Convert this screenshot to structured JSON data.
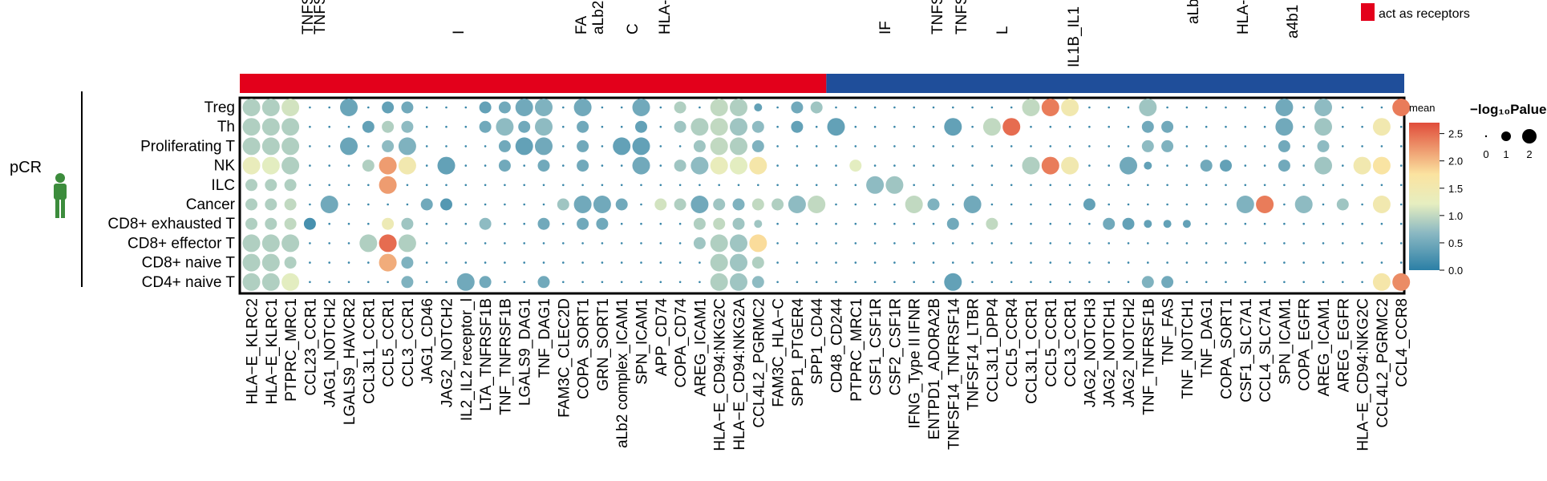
{
  "chart_data": {
    "type": "scatter",
    "group_label": "pCR",
    "rows": [
      "Treg",
      "Th",
      "Proliferating T",
      "NK",
      "ILC",
      "Cancer",
      "CD8+ exhausted T",
      "CD8+ effector T",
      "CD8+ naive T",
      "CD4+ naive T"
    ],
    "columns": [
      "HLA−E_KLRC2",
      "HLA−E_KLRC1",
      "PTPRC_MRC1",
      "CCL23_CCR1",
      "JAG1_NOTCH2",
      "LGALS9_HAVCR2",
      "CCL3L1_CCR1",
      "CCL5_CCR1",
      "CCL3_CCR1",
      "JAG1_CD46",
      "JAG2_NOTCH2",
      "IL2_IL2 receptor_l",
      "LTA_TNFRSF1B",
      "TNF_TNFRSF1B",
      "LGALS9_DAG1",
      "TNF_DAG1",
      "FAM3C_CLEC2D",
      "COPA_SORT1",
      "GRN_SORT1",
      "aLb2 complex_ICAM1",
      "SPN_ICAM1",
      "APP_CD74",
      "COPA_CD74",
      "AREG_ICAM1",
      "HLA−E_CD94:NKG2C",
      "HLA−E_CD94:NKG2A",
      "CCL4L2_PGRMC2",
      "FAM3C_HLA−C",
      "SPP1_PTGER4",
      "SPP1_CD44",
      "CD48_CD244",
      "PTPRC_MRC1",
      "CSF1_CSF1R",
      "CSF2_CSF1R",
      "IFNG_Type II IFNR",
      "ENTPD1_ADORA2B",
      "TNFSF14_TNFRSF14",
      "TNFSF14_LTBR",
      "CCL3L1_DPP4",
      "CCL5_CCR4",
      "CCL3L1_CCR1",
      "CCL5_CCR1",
      "CCL3_CCR1",
      "JAG2_NOTCH3",
      "JAG2_NOTCH1",
      "JAG2_NOTCH2",
      "TNF_TNFRSF1B",
      "TNF_FAS",
      "TNF_NOTCH1",
      "TNF_DAG1",
      "COPA_SORT1",
      "CSF1_SLC7A1",
      "CCL4_SLC7A1",
      "SPN_ICAM1",
      "COPA_EGFR",
      "AREG_ICAM1",
      "AREG_EGFR",
      "HLA−E_CD94:NKG2C",
      "CCL4L2_PGRMC2",
      "CCL4_CCR8"
    ],
    "top_labels": [
      "TNFS",
      "TNFS",
      "I",
      "FA",
      "aLb2",
      "C",
      "HLA-",
      "IF",
      "TNFS",
      "TNFSI",
      "L",
      "IL1B_IL1",
      "aLb",
      "HLA-",
      "a4b1"
    ],
    "groups": [
      {
        "start": 0,
        "end": 29,
        "color": "#e3001b"
      },
      {
        "start": 30,
        "end": 59,
        "color": "#1f4e9a"
      }
    ],
    "legend_receptor": {
      "label": "act as receptors",
      "color": "#e3001b"
    },
    "color_legend": {
      "title": "mean",
      "ticks": [
        "2.5",
        "2.0",
        "1.5",
        "1.0",
        "0.5",
        "0.0"
      ],
      "min": 0,
      "max": 2.7
    },
    "size_legend": {
      "title": "−log₁₀Palue",
      "ticks": [
        "0",
        "1",
        "2"
      ]
    },
    "points": [
      [
        0,
        0,
        3,
        0.9
      ],
      [
        0,
        1,
        3,
        0.9
      ],
      [
        0,
        2,
        3,
        1.1
      ],
      [
        0,
        5,
        3,
        0.45
      ],
      [
        0,
        7,
        2,
        0.4
      ],
      [
        0,
        8,
        2,
        0.5
      ],
      [
        0,
        12,
        2,
        0.4
      ],
      [
        0,
        13,
        2,
        0.5
      ],
      [
        0,
        14,
        3,
        0.5
      ],
      [
        0,
        15,
        3,
        0.6
      ],
      [
        0,
        17,
        3,
        0.5
      ],
      [
        0,
        20,
        3,
        0.5
      ],
      [
        0,
        22,
        2,
        0.9
      ],
      [
        0,
        24,
        3,
        1.0
      ],
      [
        0,
        25,
        3,
        0.9
      ],
      [
        0,
        26,
        1,
        0.4
      ],
      [
        0,
        28,
        2,
        0.5
      ],
      [
        0,
        29,
        2,
        0.8
      ],
      [
        0,
        40,
        3,
        1.0
      ],
      [
        0,
        41,
        3,
        2.4
      ],
      [
        0,
        42,
        3,
        1.5
      ],
      [
        0,
        46,
        3,
        0.8
      ],
      [
        0,
        53,
        3,
        0.5
      ],
      [
        0,
        55,
        3,
        0.7
      ],
      [
        0,
        59,
        3,
        2.4
      ],
      [
        1,
        0,
        3,
        0.9
      ],
      [
        1,
        1,
        3,
        0.9
      ],
      [
        1,
        2,
        3,
        0.9
      ],
      [
        1,
        6,
        2,
        0.4
      ],
      [
        1,
        7,
        2,
        0.9
      ],
      [
        1,
        8,
        2,
        0.7
      ],
      [
        1,
        12,
        2,
        0.5
      ],
      [
        1,
        13,
        3,
        0.7
      ],
      [
        1,
        14,
        2,
        0.5
      ],
      [
        1,
        15,
        3,
        0.7
      ],
      [
        1,
        17,
        2,
        0.5
      ],
      [
        1,
        20,
        2,
        0.4
      ],
      [
        1,
        22,
        2,
        0.8
      ],
      [
        1,
        23,
        3,
        0.9
      ],
      [
        1,
        24,
        3,
        1.0
      ],
      [
        1,
        25,
        3,
        0.8
      ],
      [
        1,
        26,
        2,
        0.7
      ],
      [
        1,
        28,
        2,
        0.4
      ],
      [
        1,
        30,
        3,
        0.4
      ],
      [
        1,
        36,
        3,
        0.4
      ],
      [
        1,
        38,
        3,
        1.0
      ],
      [
        1,
        39,
        3,
        2.5
      ],
      [
        1,
        46,
        2,
        0.5
      ],
      [
        1,
        47,
        2,
        0.5
      ],
      [
        1,
        53,
        3,
        0.5
      ],
      [
        1,
        55,
        3,
        0.8
      ],
      [
        1,
        58,
        3,
        1.5
      ],
      [
        2,
        0,
        3,
        0.9
      ],
      [
        2,
        1,
        3,
        0.9
      ],
      [
        2,
        2,
        3,
        0.9
      ],
      [
        2,
        5,
        3,
        0.45
      ],
      [
        2,
        7,
        2,
        0.7
      ],
      [
        2,
        8,
        3,
        0.6
      ],
      [
        2,
        13,
        2,
        0.5
      ],
      [
        2,
        14,
        3,
        0.4
      ],
      [
        2,
        15,
        3,
        0.5
      ],
      [
        2,
        17,
        2,
        0.5
      ],
      [
        2,
        19,
        3,
        0.4
      ],
      [
        2,
        20,
        3,
        0.4
      ],
      [
        2,
        23,
        2,
        0.8
      ],
      [
        2,
        24,
        3,
        1.0
      ],
      [
        2,
        25,
        3,
        0.9
      ],
      [
        2,
        26,
        2,
        0.6
      ],
      [
        2,
        46,
        2,
        0.7
      ],
      [
        2,
        47,
        2,
        0.6
      ],
      [
        2,
        53,
        2,
        0.5
      ],
      [
        2,
        55,
        2,
        0.7
      ],
      [
        3,
        0,
        3,
        1.3
      ],
      [
        3,
        1,
        3,
        1.2
      ],
      [
        3,
        2,
        3,
        0.9
      ],
      [
        3,
        6,
        2,
        0.9
      ],
      [
        3,
        7,
        3,
        2.2
      ],
      [
        3,
        8,
        3,
        1.5
      ],
      [
        3,
        10,
        3,
        0.4
      ],
      [
        3,
        13,
        2,
        0.5
      ],
      [
        3,
        15,
        2,
        0.5
      ],
      [
        3,
        17,
        2,
        0.5
      ],
      [
        3,
        20,
        3,
        0.5
      ],
      [
        3,
        22,
        2,
        0.8
      ],
      [
        3,
        23,
        3,
        0.7
      ],
      [
        3,
        24,
        3,
        1.3
      ],
      [
        3,
        25,
        3,
        1.2
      ],
      [
        3,
        26,
        3,
        1.6
      ],
      [
        3,
        31,
        2,
        1.2
      ],
      [
        3,
        40,
        3,
        0.9
      ],
      [
        3,
        41,
        3,
        2.4
      ],
      [
        3,
        42,
        3,
        1.5
      ],
      [
        3,
        45,
        3,
        0.5
      ],
      [
        3,
        46,
        1,
        0.4
      ],
      [
        3,
        49,
        2,
        0.5
      ],
      [
        3,
        50,
        2,
        0.4
      ],
      [
        3,
        53,
        2,
        0.5
      ],
      [
        3,
        55,
        3,
        0.8
      ],
      [
        3,
        57,
        3,
        1.5
      ],
      [
        3,
        58,
        3,
        1.7
      ],
      [
        4,
        0,
        2,
        0.9
      ],
      [
        4,
        1,
        2,
        0.9
      ],
      [
        4,
        2,
        2,
        0.9
      ],
      [
        4,
        7,
        3,
        2.2
      ],
      [
        4,
        32,
        3,
        0.7
      ],
      [
        4,
        33,
        3,
        0.8
      ],
      [
        5,
        0,
        2,
        0.9
      ],
      [
        5,
        1,
        2,
        0.9
      ],
      [
        5,
        2,
        2,
        1.0
      ],
      [
        5,
        4,
        3,
        0.5
      ],
      [
        5,
        9,
        2,
        0.5
      ],
      [
        5,
        10,
        2,
        0.3
      ],
      [
        5,
        16,
        2,
        0.8
      ],
      [
        5,
        17,
        3,
        0.5
      ],
      [
        5,
        18,
        3,
        0.5
      ],
      [
        5,
        19,
        2,
        0.5
      ],
      [
        5,
        21,
        2,
        1.1
      ],
      [
        5,
        22,
        2,
        0.9
      ],
      [
        5,
        23,
        3,
        0.5
      ],
      [
        5,
        24,
        2,
        0.8
      ],
      [
        5,
        25,
        2,
        0.6
      ],
      [
        5,
        26,
        2,
        1.0
      ],
      [
        5,
        27,
        2,
        0.9
      ],
      [
        5,
        28,
        3,
        0.7
      ],
      [
        5,
        29,
        3,
        1.0
      ],
      [
        5,
        34,
        3,
        1.0
      ],
      [
        5,
        35,
        2,
        0.6
      ],
      [
        5,
        37,
        3,
        0.5
      ],
      [
        5,
        43,
        2,
        0.4
      ],
      [
        5,
        51,
        3,
        0.6
      ],
      [
        5,
        52,
        3,
        2.4
      ],
      [
        5,
        54,
        3,
        0.7
      ],
      [
        5,
        56,
        2,
        0.8
      ],
      [
        5,
        58,
        3,
        1.5
      ],
      [
        6,
        0,
        2,
        0.9
      ],
      [
        6,
        1,
        2,
        0.9
      ],
      [
        6,
        2,
        2,
        1.0
      ],
      [
        6,
        3,
        2,
        0.2
      ],
      [
        6,
        7,
        2,
        1.4
      ],
      [
        6,
        8,
        2,
        0.8
      ],
      [
        6,
        12,
        2,
        0.7
      ],
      [
        6,
        15,
        2,
        0.5
      ],
      [
        6,
        17,
        2,
        0.5
      ],
      [
        6,
        18,
        2,
        0.5
      ],
      [
        6,
        23,
        2,
        0.9
      ],
      [
        6,
        24,
        2,
        1.0
      ],
      [
        6,
        25,
        2,
        0.8
      ],
      [
        6,
        26,
        1,
        0.8
      ],
      [
        6,
        36,
        2,
        0.5
      ],
      [
        6,
        38,
        2,
        1.0
      ],
      [
        6,
        44,
        2,
        0.5
      ],
      [
        6,
        45,
        2,
        0.4
      ],
      [
        6,
        46,
        1,
        0.4
      ],
      [
        6,
        47,
        1,
        0.4
      ],
      [
        6,
        48,
        1,
        0.4
      ],
      [
        7,
        0,
        3,
        0.9
      ],
      [
        7,
        1,
        3,
        0.9
      ],
      [
        7,
        2,
        3,
        0.9
      ],
      [
        7,
        6,
        3,
        0.9
      ],
      [
        7,
        7,
        3,
        2.5
      ],
      [
        7,
        8,
        3,
        0.9
      ],
      [
        7,
        23,
        2,
        0.8
      ],
      [
        7,
        24,
        3,
        0.9
      ],
      [
        7,
        25,
        3,
        0.8
      ],
      [
        7,
        26,
        3,
        1.8
      ],
      [
        8,
        0,
        3,
        0.9
      ],
      [
        8,
        1,
        3,
        0.9
      ],
      [
        8,
        2,
        2,
        0.9
      ],
      [
        8,
        7,
        3,
        2.1
      ],
      [
        8,
        8,
        2,
        0.6
      ],
      [
        8,
        24,
        3,
        0.9
      ],
      [
        8,
        25,
        3,
        0.8
      ],
      [
        8,
        26,
        2,
        0.9
      ],
      [
        9,
        0,
        3,
        0.9
      ],
      [
        9,
        1,
        3,
        0.9
      ],
      [
        9,
        2,
        3,
        1.2
      ],
      [
        9,
        8,
        2,
        0.6
      ],
      [
        9,
        11,
        3,
        0.5
      ],
      [
        9,
        12,
        2,
        0.5
      ],
      [
        9,
        15,
        2,
        0.5
      ],
      [
        9,
        24,
        3,
        0.9
      ],
      [
        9,
        25,
        3,
        0.8
      ],
      [
        9,
        26,
        2,
        0.7
      ],
      [
        9,
        36,
        3,
        0.4
      ],
      [
        9,
        46,
        2,
        0.6
      ],
      [
        9,
        47,
        2,
        0.5
      ],
      [
        9,
        58,
        3,
        1.6
      ],
      [
        9,
        59,
        3,
        2.3
      ]
    ]
  }
}
